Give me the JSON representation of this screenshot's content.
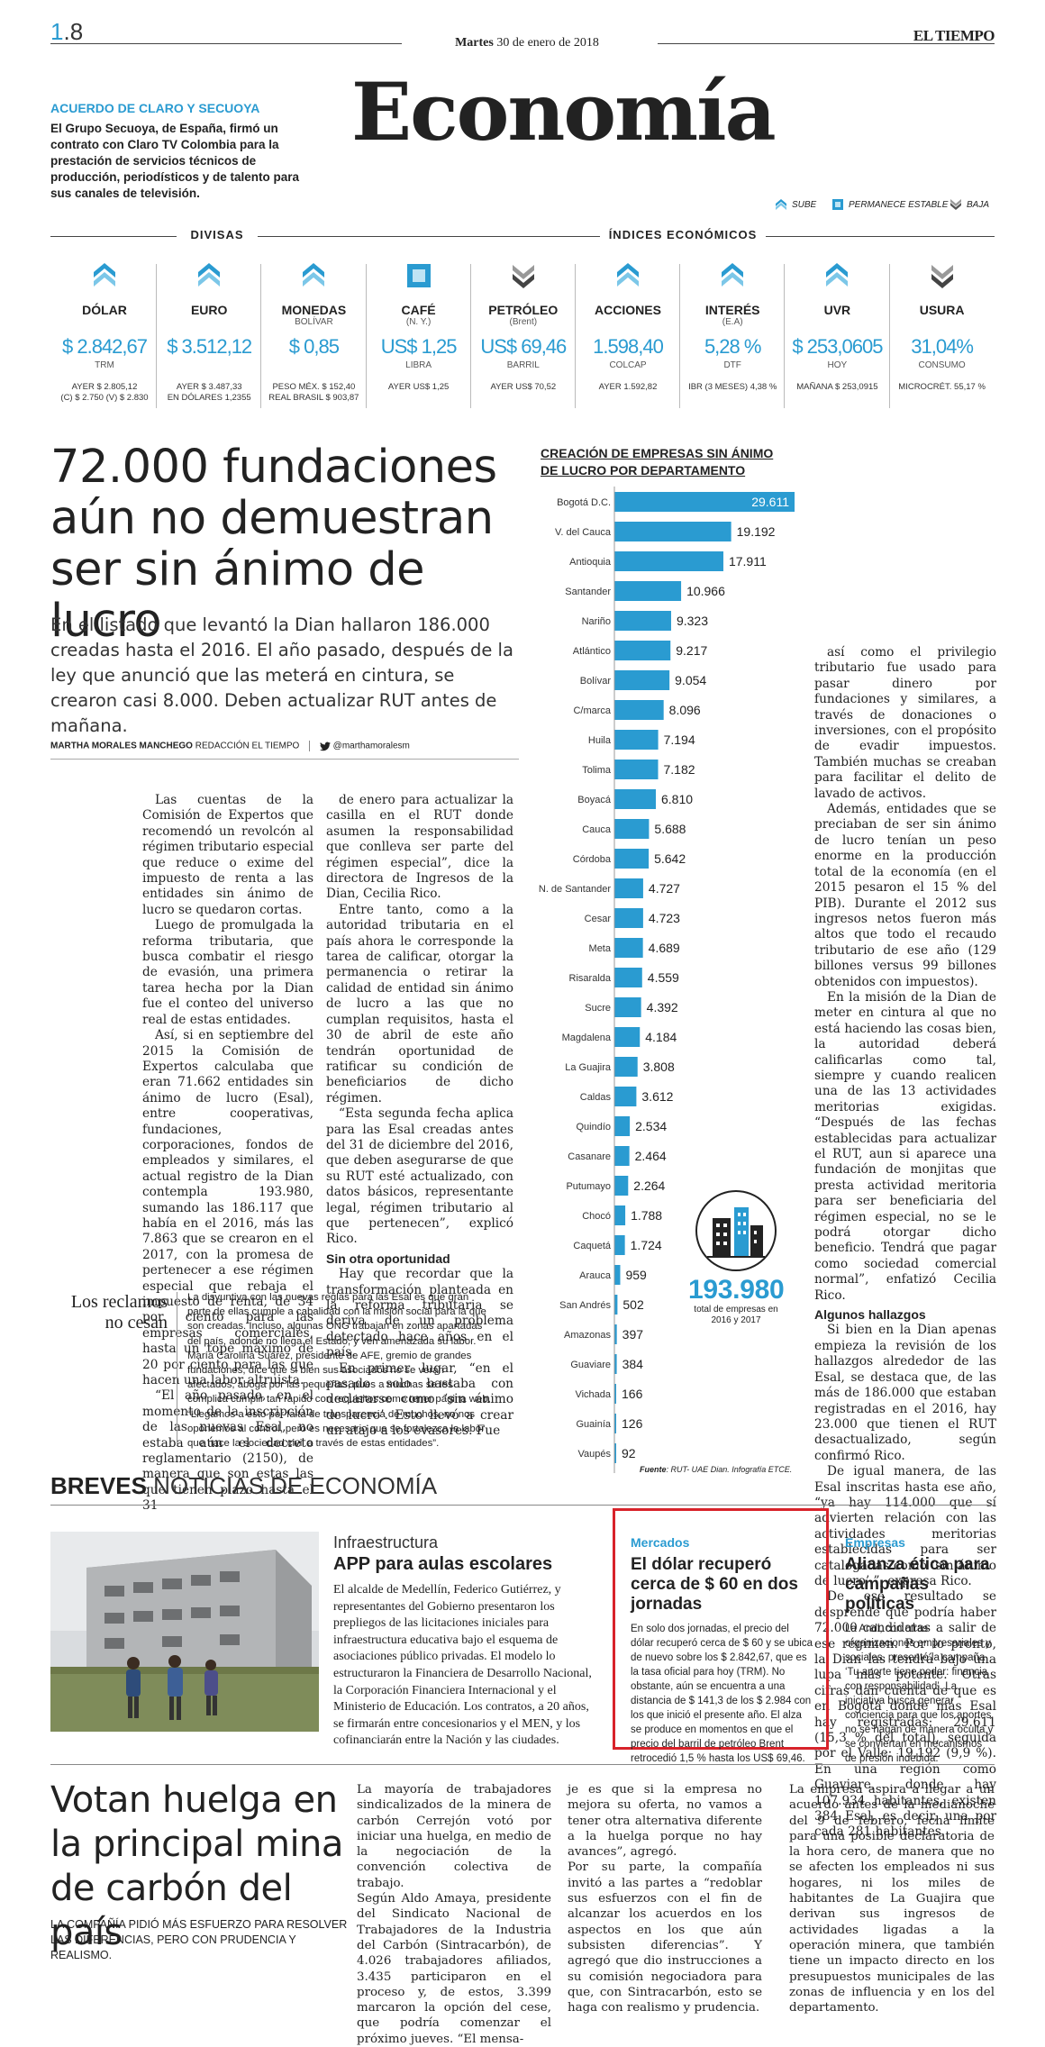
{
  "header": {
    "page_number_prefix": "1",
    "page_number_suffix": ".8",
    "date_day": "Martes",
    "date_rest": "30 de enero de 2018",
    "brand": "EL TIEMPO",
    "section": "Economía"
  },
  "teaser": {
    "title": "ACUERDO DE CLARO Y SECUOYA",
    "text": "El Grupo Secuoya, de España, firmó un contrato con Claro TV Colombia para la prestación de servicios técnicos de producción, periodísticos y de talento para sus canales de televisión."
  },
  "legend": {
    "up": "SUBE",
    "stable": "PERMANECE ESTABLE",
    "down": "BAJA"
  },
  "indicators": {
    "divisas_label": "DIVISAS",
    "indices_label": "ÍNDICES ECONÓMICOS",
    "items": [
      {
        "icon": "up-arrow-icon",
        "name": "DÓLAR",
        "sub": "",
        "value": "$ 2.842,67",
        "unit": "TRM",
        "foot": "AYER $ 2.805,12\n(C) $ 2.750 (V) $ 2.830"
      },
      {
        "icon": "up-arrow-icon",
        "name": "EURO",
        "sub": "",
        "value": "$ 3.512,12",
        "unit": "",
        "foot": "AYER $ 3.487,33\nEN DÓLARES 1,2355"
      },
      {
        "icon": "up-arrow-icon",
        "name": "MONEDAS",
        "sub": "BOLÍVAR",
        "value": "$ 0,85",
        "unit": "",
        "foot": "PESO MÉX. $ 152,40\nREAL BRASIL $ 903,87"
      },
      {
        "icon": "stable-square-icon",
        "name": "CAFÉ",
        "sub": "(N. Y.)",
        "value": "US$ 1,25",
        "unit": "LIBRA",
        "foot": "AYER US$ 1,25"
      },
      {
        "icon": "down-arrow-icon",
        "name": "PETRÓLEO",
        "sub": "(Brent)",
        "value": "US$ 69,46",
        "unit": "BARRIL",
        "foot": "AYER US$ 70,52"
      },
      {
        "icon": "up-arrow-icon",
        "name": "ACCIONES",
        "sub": "",
        "value": "1.598,40",
        "unit": "COLCAP",
        "foot": "AYER 1.592,82"
      },
      {
        "icon": "up-arrow-icon",
        "name": "INTERÉS",
        "sub": "(E.A)",
        "value": "5,28 %",
        "unit": "DTF",
        "foot": "IBR (3 MESES) 4,38 %"
      },
      {
        "icon": "up-arrow-icon",
        "name": "UVR",
        "sub": "",
        "value": "$ 253,0605",
        "unit": "HOY",
        "foot": "MAÑANA $ 253,0915"
      },
      {
        "icon": "down-arrow-icon",
        "name": "USURA",
        "sub": "",
        "value": "31,04%",
        "unit": "CONSUMO",
        "foot": "MICROCRÉT. 55,17 %"
      }
    ]
  },
  "article": {
    "headline": "72.000 fundaciones aún no demuestran ser sin ánimo de lucro",
    "lede": "En el listado que levantó la Dian hallaron 186.000 creadas hasta el 2016. El año pasado, después de la ley que anunció que las meterá en cintura, se crearon casi 8.000. Deben actualizar RUT antes de mañana.",
    "byline_name": "MARTHA MORALES MANCHEGO",
    "byline_role": "REDACCIÓN EL TIEMPO",
    "byline_handle": "@marthamoralesm",
    "col1": [
      "Las cuentas de la Comisión de Expertos que recomendó un revolcón al régimen tributario especial que reduce o exime del impuesto de renta a las entidades sin ánimo de lucro se quedaron cortas.",
      "Luego de promulgada la reforma tributaria, que busca combatir el riesgo de evasión, una primera tarea hecha por la Dian fue el conteo del universo real de estas entidades.",
      "Así, si en septiembre del 2015 la Comisión de Expertos calculaba que eran 71.662 entidades sin ánimo de lucro (Esal), entre cooperativas, fundaciones, corporaciones, fondos de empleados y similares, el actual registro de la Dian contempla 193.980, sumando las 186.117 que había en el 2016, más las 7.863 que se crearon en el 2017, con la promesa de pertenecer a ese régimen especial que rebaja el impuesto de renta, de 34 por ciento para las empresas comerciales, hasta un tope máximo de 20 por ciento para las que hacen una labor altruista.",
      "“El año pasado, en el momento de la inscripción de las nuevas Esal, no estaba aún el decreto reglamentario (2150), de manera que son estas las que tienen plazo hasta el 31"
    ],
    "col2": [
      "de enero para actualizar la casilla en el RUT donde asumen la responsabilidad que conlleva ser parte del régimen especial”, dice la directora de Ingresos de la Dian, Cecilia Rico.",
      "Entre tanto, como a la autoridad tributaria en el país ahora le corresponde la tarea de calificar, otorgar la permanencia o retirar la calidad de entidad sin ánimo de lucro a las que no cumplan requisitos, hasta el 30 de abril de este año tendrán oportunidad de ratificar su condición de beneficiarios de dicho régimen.",
      "“Esta segunda fecha aplica para las Esal creadas antes del 31 de diciembre del 2016, que deben asegurarse de que su RUT esté actualizado, con datos básicos, representante legal, régimen tributario al que pertenecen”, explicó Rico."
    ],
    "col2_subhead": "Sin otra oportunidad",
    "col2b": [
      "Hay que recordar que la transformación planteada en la reforma tributaria se deriva de un problema detectado hace años en el país.",
      "En primer lugar, “en el pasado solo bastaba con declararse como ‘sin ánimo de lucro’. Esto llevó a crear un atajo a los evasores. Fue"
    ],
    "col3": [
      "así como el privilegio tributario fue usado para pasar dinero por fundaciones y similares, a través de donaciones o inversiones, con el propósito de evadir impuestos. También muchas se creaban para facilitar el delito de lavado de activos.",
      "Además, entidades que se preciaban de ser sin ánimo de lucro tenían un peso enorme en la producción total de la economía (en el 2015 pesaron el 15 % del PIB). Durante el 2012 sus ingresos netos fueron más altos que todo el recaudo tributario de ese año (129 billones versus 99 billones obtenidos con impuestos).",
      "En la misión de la Dian de meter en cintura al que no está haciendo las cosas bien, la autoridad deberá calificarlas como tal, siempre y cuando realicen una de las 13 actividades meritorias exigidas. “Después de las fechas establecidas para actualizar el RUT, aun si aparece una fundación de monjitas que presta actividad meritoria para ser beneficiaria del régimen especial, no se le podrá otorgar dicho beneficio. Tendrá que pagar como sociedad comercial normal”, enfatizó Cecilia Rico."
    ],
    "col3_subhead": "Algunos hallazgos",
    "col3b": [
      "Si bien en la Dian apenas empieza la revisión de los hallazgos alrededor de las Esal, se destaca que, de las más de 186.000 que estaban registradas en el 2016, hay 23.000 que tienen el RUT desactualizado, según confirmó Rico.",
      "De igual manera, de las Esal inscritas hasta ese año, “ya hay 114.000 que sí advierten relación con las actividades meritorias establecidas para ser catalogadas como ‘sin ánimo de lucro’ ”, expresa Rico.",
      "De ese resultado se desprende que podría haber 72.000 candidatas a salir de ese régimen. Por lo pronto, la Dian las tendrá bajo una lupa más potente. Otras cifras dan cuenta de que es en Bogotá donde más Esal hay registradas: 29.611 (15,3 % del total), seguida por el Valle: 19.192 (9,9 %). En una región como Guaviare, donde hay 107.934 habitantes, existen 384 Esal, es decir, una por cada 281 habitantes."
    ],
    "reclamos_title": "Los reclamos no cesan",
    "reclamos_text": "La disyuntiva con las nuevas reglas para las Esal es que gran parte de ellas cumple a cabalidad con la misión social para la que son creadas. Incluso, algunas ONG trabajan en zonas apartadas del país, adonde no llega el Estado, y ven amenazada su labor. María Carolina Suárez, presidente de AFE, gremio de grandes fundaciones, dice que si bien sus asociados no se verán afectados, aboga por las pequeñas, pues a muchas se les complica cumplir tan rápido con requisitos como tener página web. “Llegamos a esto por falta de transparencia de muchos, no nos oponemos al control, pero es necesario que se fortalezca la labor que hace la sociedad civil a través de estas entidades”."
  },
  "chart_data": {
    "type": "bar",
    "title_line1": "CREACIÓN DE EMPRESAS SIN ÁNIMO",
    "title_line2": "DE LUCRO POR DEPARTAMENTO",
    "categories": [
      "Bogotá D.C.",
      "V. del Cauca",
      "Antioquia",
      "Santander",
      "Nariño",
      "Atlántico",
      "Bolívar",
      "C/marca",
      "Huila",
      "Tolima",
      "Boyacá",
      "Cauca",
      "Córdoba",
      "N. de Santander",
      "Cesar",
      "Meta",
      "Risaralda",
      "Sucre",
      "Magdalena",
      "La Guajira",
      "Caldas",
      "Quindío",
      "Casanare",
      "Putumayo",
      "Chocó",
      "Caquetá",
      "Arauca",
      "San Andrés",
      "Amazonas",
      "Guaviare",
      "Vichada",
      "Guainía",
      "Vaupés"
    ],
    "values": [
      29611,
      19192,
      17911,
      10966,
      9323,
      9217,
      9054,
      8096,
      7194,
      7182,
      6810,
      5688,
      5642,
      4727,
      4723,
      4689,
      4559,
      4392,
      4184,
      3808,
      3612,
      2534,
      2464,
      2264,
      1788,
      1724,
      959,
      502,
      397,
      384,
      166,
      126,
      92
    ],
    "labels": [
      "29.611",
      "19.192",
      "17.911",
      "10.966",
      "9.323",
      "9.217",
      "9.054",
      "8.096",
      "7.194",
      "7.182",
      "6.810",
      "5.688",
      "5.642",
      "4.727",
      "4.723",
      "4.689",
      "4.559",
      "4.392",
      "4.184",
      "3.808",
      "3.612",
      "2.534",
      "2.464",
      "2.264",
      "1.788",
      "1.724",
      "959",
      "502",
      "397",
      "384",
      "166",
      "126",
      "92"
    ],
    "total_value": "193.980",
    "total_caption": "total de empresas en 2016 y 2017",
    "source_label": "Fuente",
    "source_text": ": RUT- UAE Dian. Infografía ETCE.",
    "bar_color": "#2a9bd1"
  },
  "breves": {
    "title_bold": "BREVES",
    "title_light": " NOTICIAS DE ECONOMÍA",
    "app": {
      "kicker": "Infraestructura",
      "title": "APP para aulas escolares",
      "text": "El alcalde de Medellín, Federico Gutiérrez, y representantes del Gobierno presentaron los prepliegos de las licitaciones iniciales para infraestructura educativa bajo el esquema de asociaciones público privadas. El modelo lo estructuraron la Financiera de Desarrollo Nacional, la Corporación Financiera Internacional y el Ministerio de Educación. Los contratos, a 20 años, se firmarán entre concesionarios y el MEN, y los cofinanciarán entre la Nación y las ciudades."
    },
    "mercados": {
      "kicker": "Mercados",
      "title": "El dólar recuperó cerca de $ 60 en dos jornadas",
      "text": "En solo dos jornadas, el precio del dólar recuperó cerca de $ 60 y se ubica de nuevo sobre los $ 2.842,67, que es la tasa oficial para hoy (TRM). No obstante, aún se encuentra a una distancia de $ 141,3 de los $ 2.984 con los que inició el presente año. El alza se produce en momentos en que el precio del barril de petróleo Brent retrocedió 1,5 % hasta los US$ 69,46."
    },
    "empresas": {
      "kicker": "Empresas",
      "title": "Alianza ética para campañas políticas",
      "text": "La Andi, con otras organizaciones empresariales y sociales, presentó la campaña ‘Tu aporte tiene poder: financia con responsabilidad’. La iniciativa busca generar conciencia para que los aportes no se hagan de manera oculta y se conviertan en mecanismos de presión indebida."
    }
  },
  "huelga": {
    "headline": "Votan huelga en la principal mina de carbón del país",
    "sub": "LA COMPAÑÍA PIDIÓ MÁS ESFUERZO PARA RESOLVER LAS DIFERENCIAS, PERO CON PRUDENCIA Y REALISMO.",
    "col1": "La mayoría de trabajadores sindicalizados de la minera de carbón Cerrejón votó por iniciar una huelga, en medio de la negociación de la convención colectiva de trabajo.\nSegún Aldo Amaya, presidente del Sindicato Nacional de Trabajadores de la Industria del Carbón (Sintracarbón), de 4.026 trabajadores afiliados, 3.435 participaron en el proceso y, de estos, 3.399 marcaron la opción del cese, que podría comenzar el próximo jueves. “El mensa-",
    "col2": "je es que si la empresa no mejora su oferta, no vamos a tener otra alternativa diferente a la huelga porque no hay avances”, agregó.\nPor su parte, la compañía invitó a las partes a “redoblar sus esfuerzos con el fin de alcanzar los acuerdos en los aspectos en los que aún subsisten diferencias”. Y agregó que dio instrucciones a su comisión negociadora para que, con Sintracarbón, esto se haga con realismo y prudencia.",
    "col3": "La empresa aspira a llegar a un acuerdo antes de la medianoche del 9 de febrero, fecha límite para una posible declaratoria de la hora cero, de manera que no se afecten los empleados ni sus hogares, ni los miles de habitantes de La Guajira que derivan sus ingresos de actividades ligadas a la operación minera, que también tiene un impacto directo en los presupuestos municipales de las zonas de influencia y en los del departamento."
  }
}
